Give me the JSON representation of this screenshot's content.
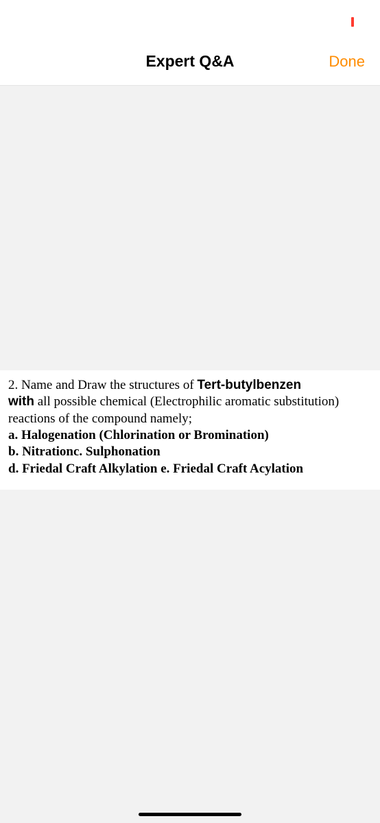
{
  "statusBar": {
    "batteryColor": "#ff3b30"
  },
  "navBar": {
    "title": "Expert Q&A",
    "doneLabel": "Done",
    "doneColor": "#ff8c00"
  },
  "question": {
    "prefix": "2. Name and Draw the structures of ",
    "compound": "Tert-butylbenzen",
    "lineAfterCompound": " ",
    "withWord": "with",
    "middleText": " all possible chemical (Electrophilic aromatic substitution) reactions of the compound namely;",
    "optionA": "a. Halogenation (Chlorination or Bromination)",
    "optionBPrefix": "b. Nitration",
    "optionBSuffix": "c. Sulphonation",
    "optionD": "d. Friedal Craft Alkylation e. Friedal Craft Acylation"
  },
  "colors": {
    "background": "#f2f2f2",
    "cardBackground": "#ffffff",
    "text": "#000000"
  }
}
